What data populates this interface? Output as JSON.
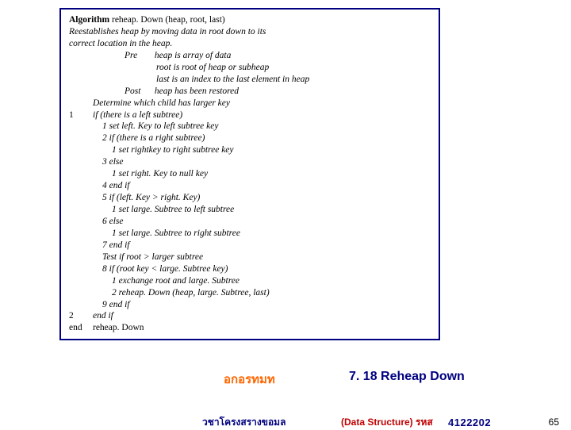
{
  "algobox": {
    "sig_kw": "Algorithm",
    "sig_rest": "reheap. Down (heap, root, last)",
    "desc1": "Reestablishes heap by moving data in root down to its",
    "desc2": "correct location in the heap.",
    "pre_label": "Pre",
    "pre1": "heap is array of data",
    "pre2": "root is root of heap or subheap",
    "pre3": "last is an index to the last element in heap",
    "post_label": "Post",
    "post1": "heap has been restored",
    "det": "Determine which child has larger key",
    "s1_n": "1",
    "s1": "if (there is a left subtree)",
    "s1_1": "1  set left. Key to left subtree key",
    "s1_2": "2  if (there is a right subtree)",
    "s1_2_1": "1  set rightkey to right subtree key",
    "s1_3": "3  else",
    "s1_3_1": "1  set right. Key to null key",
    "s1_4": "4  end if",
    "s1_5": "5  if (left. Key > right. Key)",
    "s1_5_1": "1  set large. Subtree to left subtree",
    "s1_6": "6  else",
    "s1_6_1": "1  set large. Subtree to right subtree",
    "s1_7": "7  end if",
    "s1_test": "Test if root > larger subtree",
    "s1_8": "8  if (root key < large. Subtree key)",
    "s1_8_1": "1  exchange root and large. Subtree",
    "s1_8_2": "2  reheap. Down (heap, large. Subtree, last)",
    "s1_9": "9  end if",
    "s2_n": "2",
    "s2": "end if",
    "end_n": "end",
    "end_t": "reheap. Down"
  },
  "orange_title": "อกอรทมท",
  "blue_title": "7. 18 Reheap Down",
  "footer": {
    "left": "วชาโครงสรางขอมล",
    "mid": "(Data Structure) รหส",
    "code": "4122202",
    "page": "65"
  },
  "colors": {
    "border": "#000080",
    "orange": "#ff6600",
    "navy": "#000080",
    "red": "#c00000"
  }
}
